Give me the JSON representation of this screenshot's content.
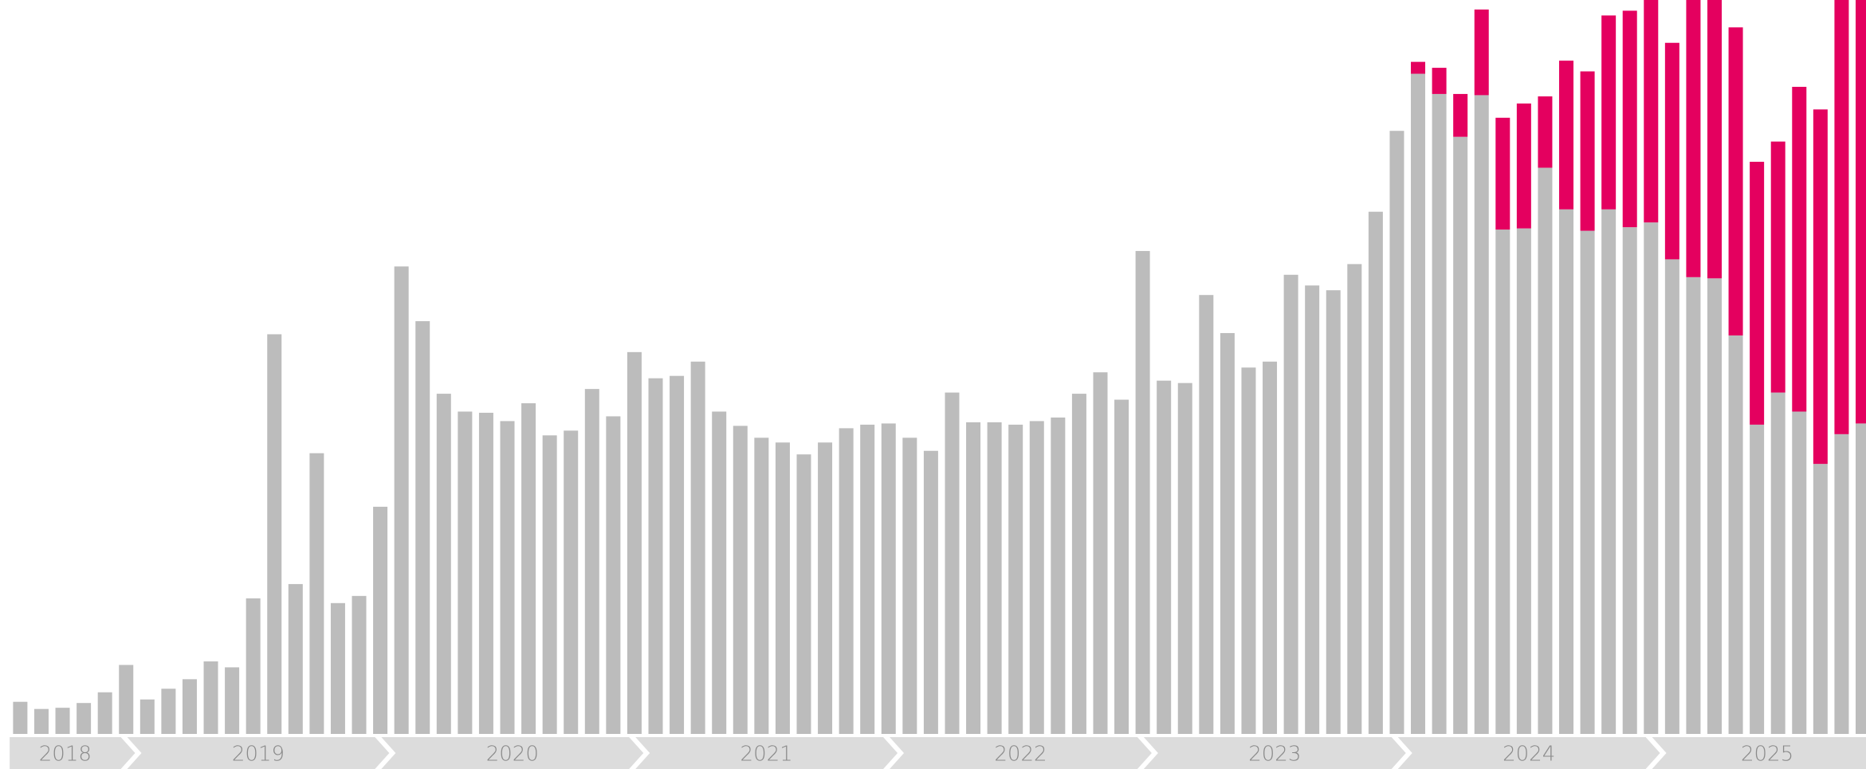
{
  "chart_data": {
    "type": "stacked_bar",
    "categories": [
      "2018",
      null,
      null,
      null,
      null,
      null,
      "2019",
      null,
      null,
      null,
      null,
      null,
      null,
      null,
      null,
      null,
      null,
      null,
      "2020",
      null,
      null,
      null,
      null,
      null,
      null,
      null,
      null,
      null,
      null,
      null,
      "2021",
      null,
      null,
      null,
      null,
      null,
      null,
      null,
      null,
      null,
      null,
      null,
      "2022",
      null,
      null,
      null,
      null,
      null,
      null,
      null,
      null,
      null,
      null,
      null,
      "2023",
      null,
      null,
      null,
      null,
      null,
      null,
      null,
      null,
      null,
      null,
      null,
      "2024",
      null,
      null,
      null,
      null,
      null,
      null,
      null,
      null,
      null,
      null,
      null,
      "2025",
      null,
      null,
      null,
      null,
      null,
      null,
      null,
      null,
      null
    ],
    "series": [
      {
        "color": "#bcbcbc",
        "values": [
          27,
          21,
          22,
          26,
          35,
          58,
          29,
          38,
          46,
          61,
          56,
          114,
          336,
          126,
          236,
          110,
          116,
          191,
          393,
          347,
          286,
          271,
          270,
          263,
          278,
          251,
          255,
          290,
          267,
          321,
          299,
          301,
          313,
          271,
          259,
          249,
          245,
          235,
          245,
          257,
          260,
          261,
          249,
          238,
          287,
          262,
          262,
          260,
          263,
          266,
          286,
          304,
          281,
          406,
          297,
          295,
          369,
          337,
          308,
          313,
          386,
          377,
          373,
          395,
          439,
          507,
          555,
          538,
          502,
          537,
          424,
          425,
          476,
          441,
          423,
          441,
          426,
          430,
          399,
          384,
          383,
          335,
          260,
          287,
          271,
          227,
          252,
          261
        ]
      },
      {
        "color": "#e4005f",
        "values": [
          null,
          null,
          null,
          null,
          null,
          null,
          null,
          null,
          null,
          null,
          null,
          null,
          null,
          null,
          null,
          null,
          null,
          null,
          null,
          null,
          null,
          null,
          null,
          null,
          null,
          null,
          null,
          null,
          null,
          null,
          null,
          null,
          null,
          null,
          null,
          null,
          null,
          null,
          null,
          null,
          null,
          null,
          null,
          null,
          null,
          null,
          null,
          null,
          null,
          null,
          null,
          null,
          null,
          null,
          null,
          null,
          null,
          null,
          null,
          null,
          null,
          null,
          null,
          null,
          null,
          null,
          10,
          22,
          36,
          72,
          94,
          105,
          60,
          125,
          134,
          163,
          182,
          187,
          182,
          233,
          234,
          259,
          221,
          211,
          273,
          298,
          365,
          356
        ]
      }
    ],
    "ylim": [
      0,
      617
    ]
  }
}
